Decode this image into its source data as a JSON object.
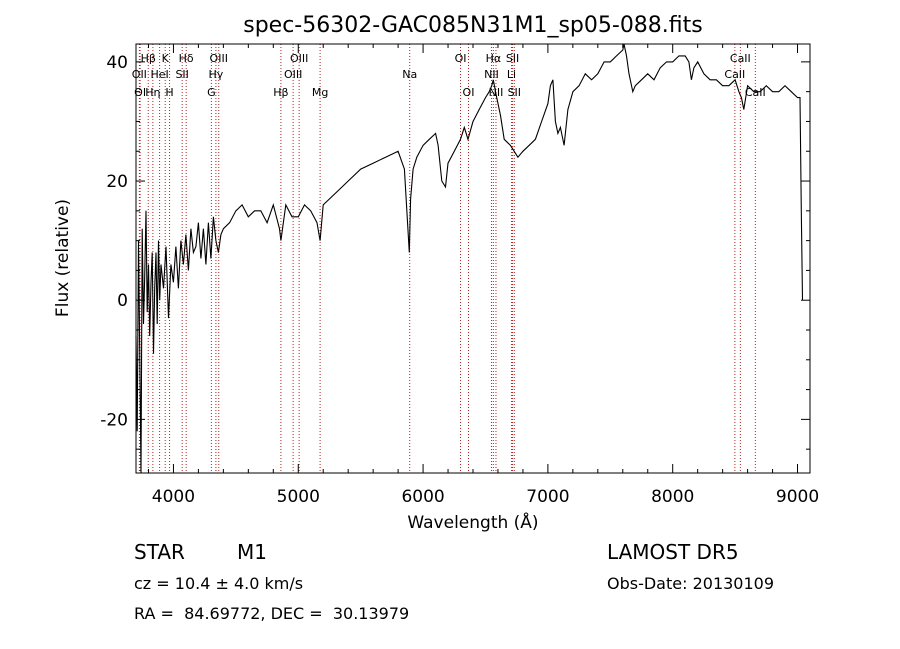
{
  "chart_data": {
    "type": "line",
    "title": "spec-56302-GAC085N31M1_sp05-088.fits",
    "xlabel": "Wavelength (Å)",
    "ylabel": "Flux (relative)",
    "xlim": [
      3700,
      9100
    ],
    "ylim": [
      -29,
      43
    ],
    "xticks": [
      4000,
      5000,
      6000,
      7000,
      8000,
      9000
    ],
    "yticks": [
      -20,
      0,
      20,
      40
    ],
    "grid": false,
    "series": [
      {
        "x": [
          3700,
          3710,
          3720,
          3730,
          3740,
          3750,
          3760,
          3770,
          3780,
          3790,
          3800,
          3810,
          3820,
          3830,
          3840,
          3850,
          3860,
          3870,
          3880,
          3890,
          3900,
          3920,
          3940,
          3960,
          3980,
          4000,
          4020,
          4040,
          4060,
          4080,
          4100,
          4120,
          4140,
          4160,
          4180,
          4200,
          4220,
          4240,
          4260,
          4280,
          4300,
          4320,
          4340,
          4360,
          4380,
          4400,
          4450,
          4500,
          4550,
          4600,
          4650,
          4700,
          4750,
          4800,
          4850,
          4861,
          4900,
          4950,
          5000,
          5050,
          5100,
          5150,
          5175,
          5200,
          5300,
          5400,
          5500,
          5600,
          5700,
          5800,
          5850,
          5890,
          5900,
          5920,
          5950,
          6000,
          6050,
          6100,
          6120,
          6150,
          6180,
          6200,
          6250,
          6300,
          6330,
          6360,
          6400,
          6450,
          6500,
          6530,
          6550,
          6563,
          6580,
          6620,
          6650,
          6700,
          6730,
          6760,
          6800,
          6850,
          6900,
          6950,
          7000,
          7020,
          7040,
          7060,
          7080,
          7100,
          7130,
          7160,
          7200,
          7250,
          7300,
          7350,
          7400,
          7450,
          7500,
          7550,
          7600,
          7610,
          7630,
          7650,
          7680,
          7700,
          7750,
          7800,
          7850,
          7900,
          7950,
          8000,
          8050,
          8100,
          8130,
          8150,
          8170,
          8200,
          8250,
          8300,
          8350,
          8400,
          8450,
          8500,
          8530,
          8550,
          8570,
          8600,
          8650,
          8700,
          8750,
          8800,
          8850,
          8900,
          8950,
          9000,
          9020,
          9030,
          9040
        ],
        "y": [
          -6,
          -22,
          10,
          -8,
          -29,
          12,
          -4,
          4,
          15,
          -2,
          6,
          -6,
          3,
          8,
          -9,
          2,
          8,
          -4,
          10,
          0,
          6,
          2,
          9,
          -3,
          6,
          3,
          9,
          2,
          10,
          6,
          11,
          5,
          12,
          8,
          9,
          13,
          7,
          12,
          6,
          13,
          7,
          14,
          10,
          8,
          11,
          12,
          13,
          15,
          16,
          14,
          15,
          15,
          13,
          16,
          12,
          10,
          16,
          14,
          14,
          16,
          15,
          13,
          10,
          16,
          18,
          20,
          22,
          23,
          24,
          25,
          22,
          8,
          17,
          22,
          24,
          26,
          27,
          28,
          26,
          20,
          19,
          23,
          25,
          27,
          29,
          27,
          30,
          32,
          34,
          35,
          36,
          37,
          35,
          31,
          27,
          26,
          25,
          24,
          25,
          26,
          27,
          30,
          33,
          36,
          37,
          30,
          28,
          29,
          26,
          32,
          35,
          36,
          38,
          37,
          38,
          40,
          40,
          41,
          42,
          43,
          41,
          38,
          35,
          36,
          37,
          38,
          37,
          39,
          40,
          40,
          41,
          41,
          40,
          37,
          39,
          40,
          38,
          37,
          37,
          36,
          36,
          37,
          35,
          34,
          32,
          36,
          35,
          35,
          36,
          35,
          35,
          36,
          35,
          34,
          34,
          15,
          0
        ]
      }
    ],
    "line_labels": [
      {
        "name": "Hβ",
        "wl": 3798,
        "row": 1
      },
      {
        "name": "OII",
        "wl": 3727,
        "row": 2
      },
      {
        "name": "OI",
        "wl": 3733,
        "row": 3
      },
      {
        "name": "Hη",
        "wl": 3835,
        "row": 3
      },
      {
        "name": "HeI",
        "wl": 3889,
        "row": 2
      },
      {
        "name": "K",
        "wl": 3934,
        "row": 1
      },
      {
        "name": "H",
        "wl": 3969,
        "row": 3
      },
      {
        "name": "SII",
        "wl": 4070,
        "row": 2
      },
      {
        "name": "Hδ",
        "wl": 4102,
        "row": 1
      },
      {
        "name": "OIII",
        "wl": 4363,
        "row": 1
      },
      {
        "name": "Hγ",
        "wl": 4340,
        "row": 2
      },
      {
        "name": "G",
        "wl": 4304,
        "row": 3
      },
      {
        "name": "Hβ",
        "wl": 4861,
        "row": 3
      },
      {
        "name": "OIII",
        "wl": 5007,
        "row": 1
      },
      {
        "name": "OIII",
        "wl": 4959,
        "row": 2
      },
      {
        "name": "Mg",
        "wl": 5175,
        "row": 3
      },
      {
        "name": "Na",
        "wl": 5893,
        "row": 2
      },
      {
        "name": "OI",
        "wl": 6300,
        "row": 1
      },
      {
        "name": "OI",
        "wl": 6364,
        "row": 3
      },
      {
        "name": "Hα",
        "wl": 6563,
        "row": 1
      },
      {
        "name": "SII",
        "wl": 6717,
        "row": 1
      },
      {
        "name": "NII",
        "wl": 6548,
        "row": 2
      },
      {
        "name": "Li",
        "wl": 6708,
        "row": 2
      },
      {
        "name": "NII",
        "wl": 6584,
        "row": 3
      },
      {
        "name": "SII",
        "wl": 6731,
        "row": 3
      },
      {
        "name": "CaII",
        "wl": 8542,
        "row": 1
      },
      {
        "name": "CaII",
        "wl": 8498,
        "row": 2
      },
      {
        "name": "CaII",
        "wl": 8662,
        "row": 3
      }
    ],
    "line_marks_wl": [
      3727,
      3733,
      3798,
      3835,
      3889,
      3934,
      3969,
      4070,
      4102,
      4304,
      4340,
      4363,
      4861,
      4959,
      5007,
      5175,
      5893,
      6300,
      6364,
      6548,
      6563,
      6584,
      6708,
      6717,
      6731,
      8498,
      8542,
      8662
    ],
    "colors": {
      "spectrum": "#000000",
      "line_marks": "#b22222",
      "frame": "#000000"
    }
  },
  "info": {
    "object_class": "STAR",
    "subclass": "M1",
    "survey": "LAMOST DR5",
    "cz": "cz = 10.4 ± 4.0 km/s",
    "obs_date": "Obs-Date: 20130109",
    "coords": "RA =  84.69772, DEC =  30.13979"
  }
}
